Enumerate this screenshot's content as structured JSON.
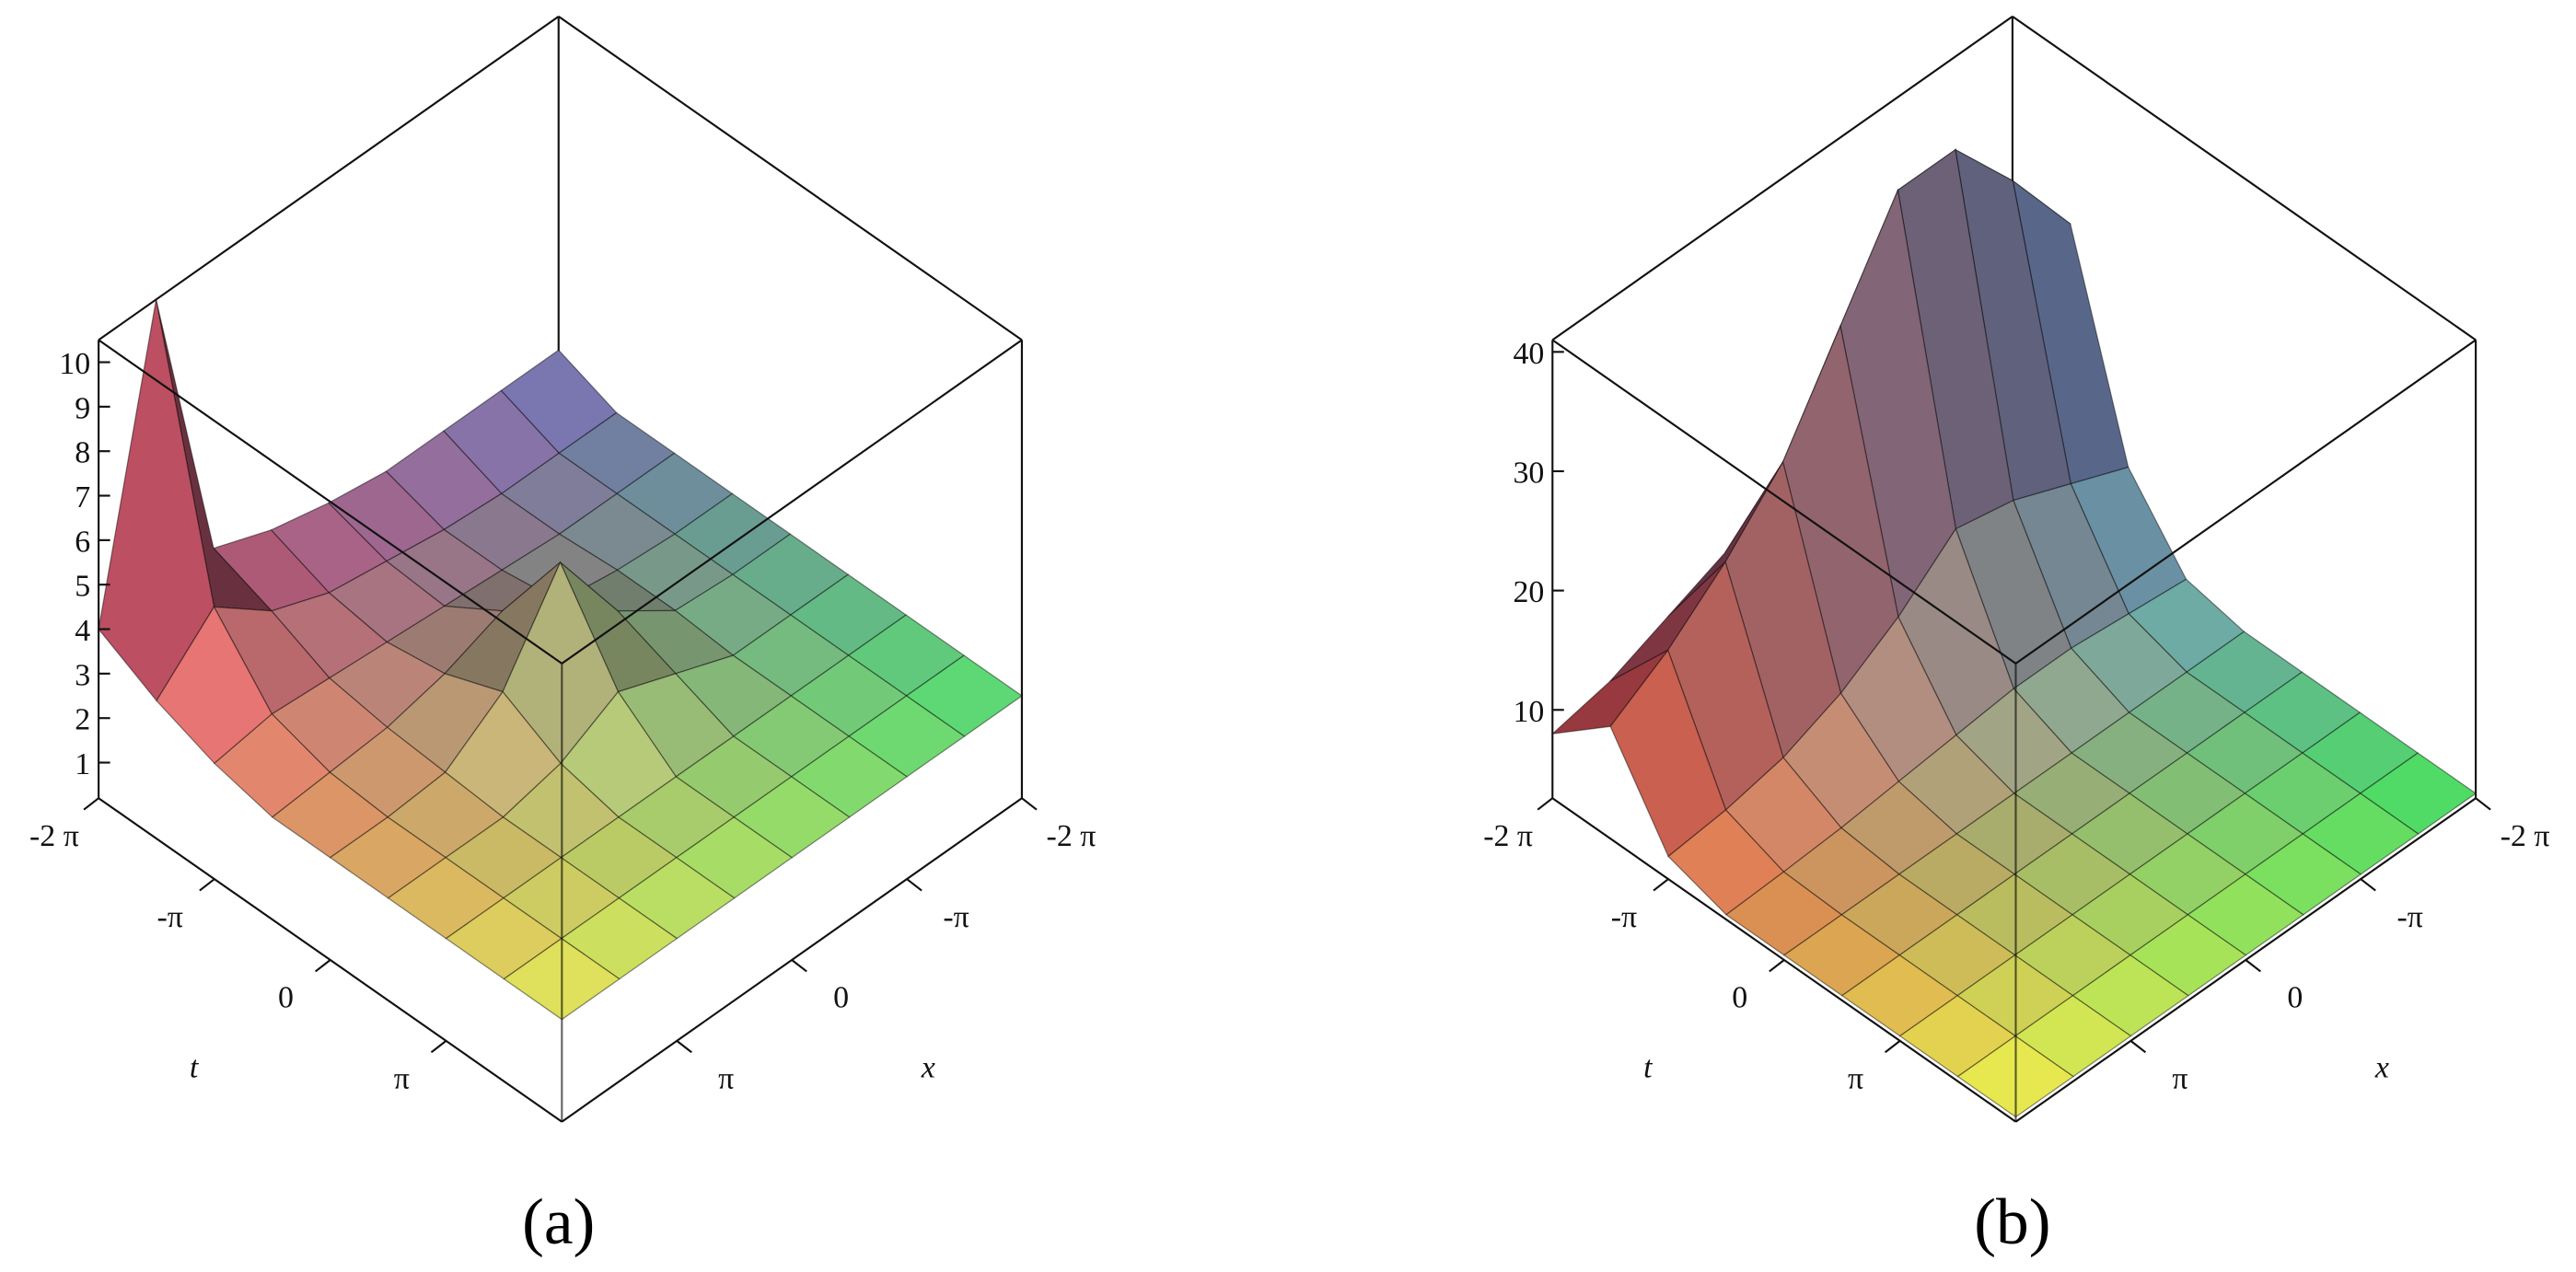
{
  "chart_data": [
    {
      "type": "surface",
      "label": "(a)",
      "x_label": "x",
      "y_label": "t",
      "x": [
        -6.2832,
        -4.7124,
        -3.1416,
        -1.5708,
        0,
        1.5708,
        3.1416,
        4.7124,
        6.2832
      ],
      "y": [
        -6.2832,
        -4.7124,
        -3.1416,
        -1.5708,
        0,
        1.5708,
        3.1416,
        4.7124,
        6.2832
      ],
      "z": [
        [
          3,
          3,
          3,
          3,
          3.2,
          3.5,
          4,
          10.5,
          4
        ],
        [
          2.5,
          2.5,
          2.5,
          2.6,
          2.8,
          3,
          3.5,
          4.5,
          3.3
        ],
        [
          2.5,
          2.5,
          2.5,
          2.6,
          2.7,
          2.8,
          2.9,
          3,
          2.8
        ],
        [
          2.5,
          2.5,
          2.6,
          2.8,
          3.5,
          3,
          2.7,
          2.6,
          2.5
        ],
        [
          2.5,
          2.5,
          2.6,
          3.5,
          5.5,
          3.5,
          2.6,
          2.5,
          2.5
        ],
        [
          2.5,
          2.5,
          2.5,
          3,
          3.5,
          2.8,
          2.5,
          2.5,
          2.5
        ],
        [
          2.5,
          2.5,
          2.5,
          2.5,
          2.5,
          2.5,
          2.5,
          2.5,
          2.5
        ],
        [
          2.5,
          2.5,
          2.5,
          2.5,
          2.5,
          2.5,
          2.5,
          2.5,
          2.5
        ],
        [
          2.5,
          2.5,
          2.5,
          2.5,
          2.5,
          2.5,
          2.5,
          2.5,
          2.5
        ]
      ],
      "xlim": [
        -6.2832,
        6.2832
      ],
      "ylim": [
        -6.2832,
        6.2832
      ],
      "zlim": [
        0.2,
        10.5
      ],
      "xticks": [
        {
          "value": -6.2832,
          "label": "-2 π"
        },
        {
          "value": -3.1416,
          "label": "-π"
        },
        0,
        {
          "value": 3.1416,
          "label": "π"
        }
      ],
      "yticks": [
        {
          "value": -6.2832,
          "label": "-2 π"
        },
        {
          "value": -3.1416,
          "label": "-π"
        },
        0,
        {
          "value": 3.1416,
          "label": "π"
        }
      ],
      "zticks": [
        1,
        2,
        3,
        4,
        5,
        6,
        7,
        8,
        9,
        10
      ],
      "colors": {
        "back": "#7470b8",
        "left": "#e0506e",
        "right": "#55e878",
        "front": "#f4f45c"
      }
    },
    {
      "type": "surface",
      "label": "(b)",
      "x_label": "x",
      "y_label": "t",
      "x": [
        -6.2832,
        -4.7124,
        -3.1416,
        -1.5708,
        0,
        1.5708,
        3.1416,
        4.7124,
        6.2832
      ],
      "y": [
        -6.2832,
        -4.7124,
        -3.1416,
        -1.5708,
        0,
        1.5708,
        3.1416,
        4.7124,
        6.2832
      ],
      "z": [
        [
          14,
          18,
          21,
          22,
          17,
          13,
          11,
          9,
          8
        ],
        [
          27,
          34,
          40,
          40,
          32,
          24,
          19,
          15,
          12
        ],
        [
          10,
          12,
          14,
          15,
          11,
          8,
          6,
          5,
          4.5
        ],
        [
          4,
          4.5,
          5,
          5,
          4.5,
          4,
          3.5,
          3.2,
          3
        ],
        [
          3,
          3,
          3,
          3,
          3,
          3,
          3,
          3,
          3
        ],
        [
          3,
          3,
          3,
          3,
          3,
          3,
          3,
          3,
          3
        ],
        [
          3,
          3,
          3,
          3,
          3,
          3,
          3,
          3,
          3
        ],
        [
          3,
          3,
          3,
          3,
          3,
          3,
          3,
          3,
          3
        ],
        [
          3,
          3,
          3,
          3,
          3,
          3,
          3,
          3,
          3
        ]
      ],
      "xlim": [
        -6.2832,
        6.2832
      ],
      "ylim": [
        -6.2832,
        6.2832
      ],
      "zlim": [
        2.6,
        41
      ],
      "xticks": [
        {
          "value": -6.2832,
          "label": "-2 π"
        },
        {
          "value": -3.1416,
          "label": "-π"
        },
        0,
        {
          "value": 3.1416,
          "label": "π"
        }
      ],
      "yticks": [
        {
          "value": -6.2832,
          "label": "-2 π"
        },
        {
          "value": -3.1416,
          "label": "-π"
        },
        0,
        {
          "value": 3.1416,
          "label": "π"
        }
      ],
      "zticks": [
        10,
        20,
        30,
        40
      ],
      "colors": {
        "back": "#8282e4",
        "left": "#d8404e",
        "right": "#44ea64",
        "front": "#ffff52"
      }
    }
  ]
}
